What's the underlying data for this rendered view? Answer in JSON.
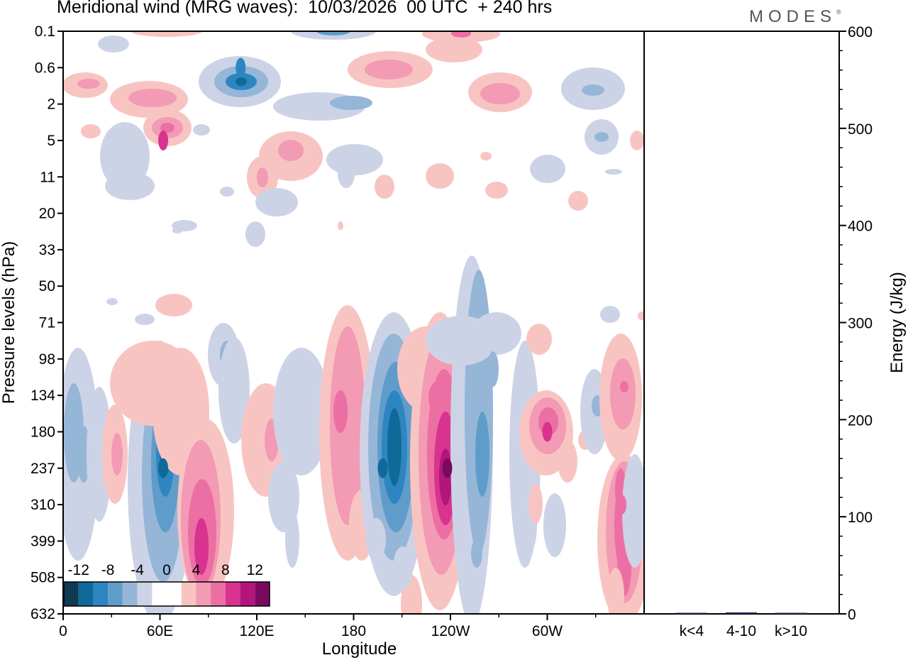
{
  "title": "Meridional wind (MRG waves):  10/03/2026  00 UTC  + 240 hrs",
  "logo": "MODES",
  "logo_mark": "®",
  "chart_data": [
    {
      "type": "heatmap",
      "name": "meridional-wind-section",
      "xlabel": "Longitude",
      "ylabel": "Pressure levels (hPa)",
      "x_ticks": [
        "0",
        "60E",
        "120E",
        "180",
        "120W",
        "60W"
      ],
      "x_range_deg": [
        0,
        360
      ],
      "y_ticks": [
        "0.1",
        "0.6",
        "2",
        "5",
        "11",
        "20",
        "33",
        "50",
        "71",
        "98",
        "134",
        "180",
        "237",
        "310",
        "399",
        "508",
        "632"
      ],
      "colorbar": {
        "labels": [
          "-12",
          "-8",
          "-4",
          "0",
          "4",
          "8",
          "12"
        ],
        "levels": [
          -14,
          -12,
          -10,
          -8,
          -6,
          -4,
          -2,
          0,
          2,
          4,
          6,
          8,
          10,
          12,
          14
        ],
        "colors": [
          "#0f3a52",
          "#0f6a9a",
          "#2e86c1",
          "#5f9cc9",
          "#96b6d8",
          "#cdd3e6",
          "#ffffff",
          "#ffffff",
          "#f8c4c2",
          "#f39ab4",
          "#ec6fa4",
          "#d8338f",
          "#b3167a",
          "#7a0a60"
        ]
      },
      "features": [
        {
          "lon": 62,
          "level": 237,
          "value": -12
        },
        {
          "lon": 86,
          "level": 399,
          "value": 10
        },
        {
          "lon": 198,
          "level": 237,
          "value": -12
        },
        {
          "lon": 238,
          "level": 237,
          "value": 14
        },
        {
          "lon": 260,
          "level": 237,
          "value": -8
        },
        {
          "lon": 300,
          "level": 180,
          "value": 10
        },
        {
          "lon": 346,
          "level": 310,
          "value": 8
        },
        {
          "lon": 110,
          "level": 0.6,
          "value": -10
        },
        {
          "lon": 62,
          "level": 5,
          "value": 10
        }
      ]
    },
    {
      "type": "bar",
      "name": "energy-by-wavenumber",
      "categories": [
        "k<4",
        "4-10",
        "k>10"
      ],
      "values": [
        0.5,
        1.5,
        0.5
      ],
      "ylabel": "Energy (J/kg)",
      "ylim": [
        0,
        600
      ],
      "y_ticks": [
        "0",
        "100",
        "200",
        "300",
        "400",
        "500",
        "600"
      ]
    }
  ]
}
